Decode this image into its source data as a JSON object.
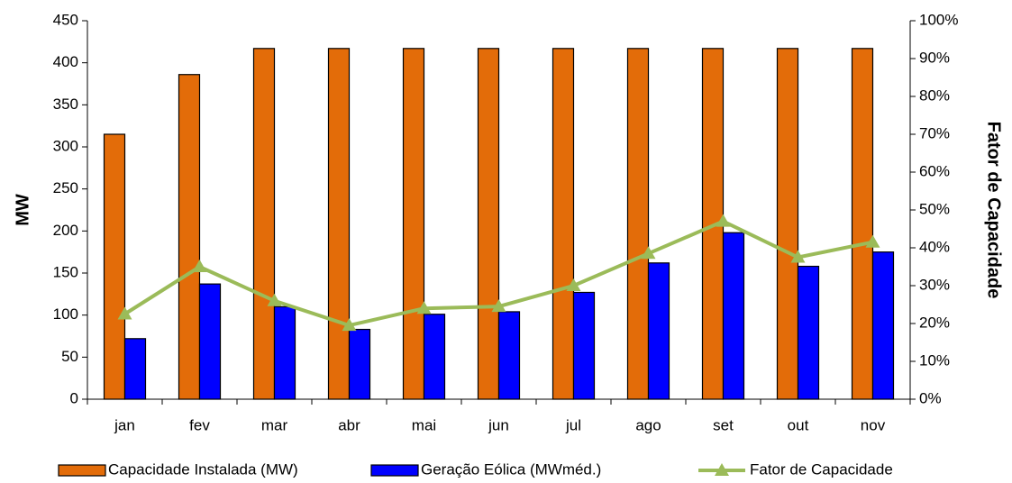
{
  "chart_data": {
    "type": "bar",
    "categories": [
      "jan",
      "fev",
      "mar",
      "abr",
      "mai",
      "jun",
      "jul",
      "ago",
      "set",
      "out",
      "nov"
    ],
    "y_label": "MW",
    "y2_label": "Fator de Capacidade",
    "series": [
      {
        "name": "Capacidade Instalada (MW)",
        "color": "#e36c09",
        "values": [
          315,
          386,
          417,
          417,
          417,
          417,
          417,
          417,
          417,
          417,
          417
        ]
      },
      {
        "name": "Geração Eólica (MWméd.)",
        "color": "#0000ff",
        "values": [
          72,
          137,
          110,
          83,
          101,
          104,
          127,
          162,
          198,
          158,
          175
        ]
      },
      {
        "name": "Fator de Capacidade",
        "color": "#9bbb59",
        "type": "line",
        "axis": "y2",
        "values": [
          22.5,
          35,
          26,
          19.5,
          24,
          24.5,
          30,
          38.5,
          47,
          37.5,
          41.5
        ]
      }
    ],
    "ylim": [
      0,
      450
    ],
    "yticks": [
      0,
      50,
      100,
      150,
      200,
      250,
      300,
      350,
      400,
      450
    ],
    "y2lim": [
      0,
      100
    ],
    "y2ticks": [
      {
        "value": 0,
        "label": "0%"
      },
      {
        "value": 10,
        "label": "10%"
      },
      {
        "value": 20,
        "label": "20%"
      },
      {
        "value": 30,
        "label": "30%"
      },
      {
        "value": 40,
        "label": "40%"
      },
      {
        "value": 50,
        "label": "50%"
      },
      {
        "value": 60,
        "label": "60%"
      },
      {
        "value": 70,
        "label": "70%"
      },
      {
        "value": 80,
        "label": "80%"
      },
      {
        "value": 90,
        "label": "90%"
      },
      {
        "value": 100,
        "label": "100%"
      }
    ],
    "legend": "bottom"
  }
}
